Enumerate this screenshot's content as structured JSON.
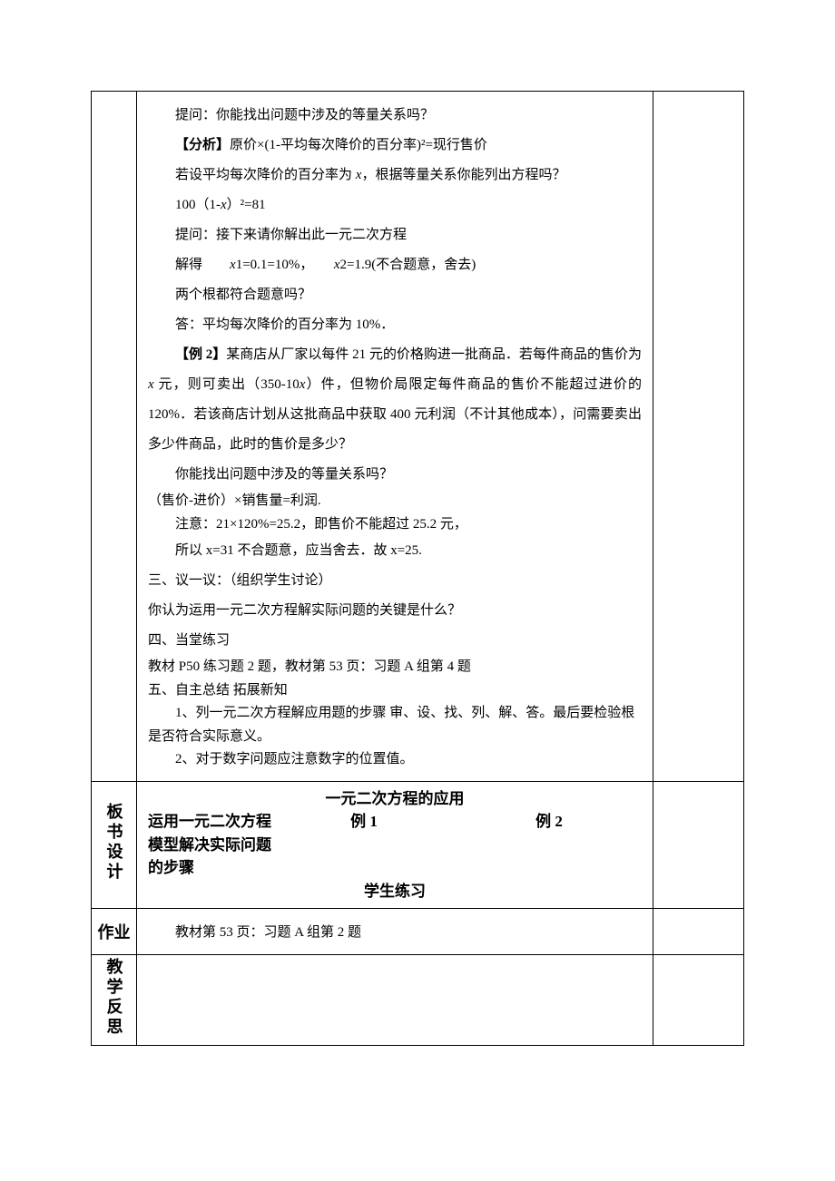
{
  "main": {
    "p1": "提问：你能找出问题中涉及的等量关系吗？",
    "p2a": "【分析】",
    "p2b": "原价×(1-平均每次降价的百分率)²=现行售价",
    "p3a": "若设平均每次降价的百分率为 ",
    "p3b": "x",
    "p3c": "，根据等量关系你能列出方程吗？",
    "p4a": "100（1-",
    "p4b": "x",
    "p4c": "）²=81",
    "p5": "提问：接下来请你解出此一元二次方程",
    "p6a": "解得　　",
    "p6b": "x",
    "p6c": "1=0.1=10%，　　",
    "p6d": "x",
    "p6e": "2=1.9(不合题意，舍去)",
    "p7": "两个根都符合题意吗？",
    "p8": "答：平均每次降价的百分率为 10%．",
    "p9a": "【例 2】",
    "p9b": "某商店从厂家以每件 21 元的价格购进一批商品．若每件商品的售价为 ",
    "p9c": "x",
    "p9d": " 元，则可卖出（350-10",
    "p9e": "x",
    "p9f": "）件，但物价局限定每件商品的售价不能超过进价的 120%．若该商店计划从这批商品中获取 400 元利润（不计其他成本），问需要卖出多少件商品，此时的售价是多少？",
    "p10": "你能找出问题中涉及的等量关系吗？",
    "p11": "（售价-进价）×销售量=利润.",
    "p12": "注意：21×120%=25.2，即售价不能超过 25.2 元，",
    "p13": "所以 x=31 不合题意，应当舍去．故 x=25.",
    "p14": "三、议一议：（组织学生讨论）",
    "p15": "你认为运用一元二次方程解实际问题的关键是什么？",
    "p16": "四、当堂练习",
    "p17": "教材 P50 练习题 2 题，教材第 53 页：习题 A 组第 4 题",
    "p18": "五、自主总结  拓展新知",
    "p19": "1、列一元二次方程解应用题的步骤 审、设、找、列、解、答。最后要检验根是否符合实际意义。",
    "p20": "2、对于数字问题应注意数字的位置值。"
  },
  "board": {
    "label": "板书设计",
    "title": "一元二次方程的应用",
    "left1": "运用一元二次方程",
    "left2": "模型解决实际问题",
    "left3": "的步骤",
    "ex1": "例 1",
    "ex2": "例 2",
    "practice": "学生练习"
  },
  "homework": {
    "label": "作业",
    "text": "教材第 53 页：习题 A 组第 2 题"
  },
  "reflect": {
    "label": "教学反思"
  }
}
